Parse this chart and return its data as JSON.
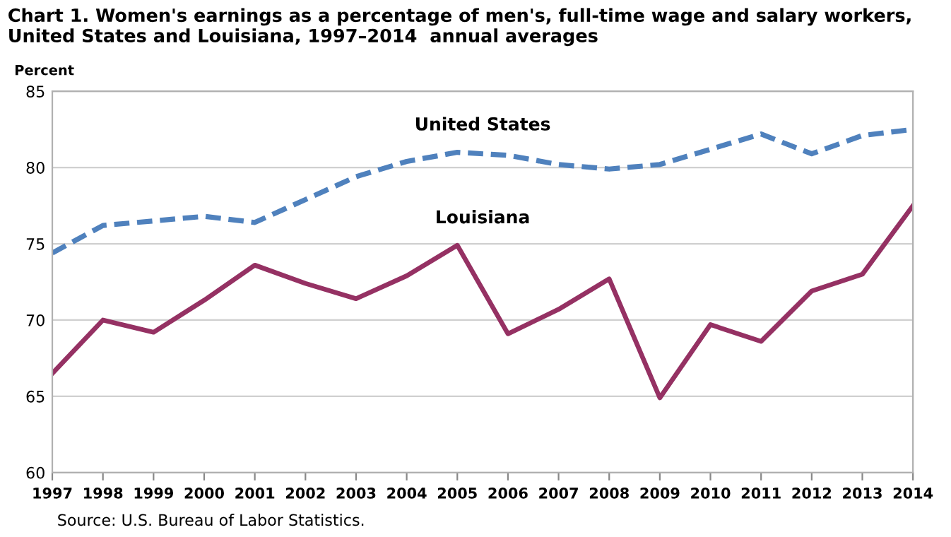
{
  "chart_data": {
    "type": "line",
    "title": "Chart 1. Women's earnings as a percentage of men's, full-time wage and salary workers, United States and Louisiana, 1997–2014  annual averages",
    "ylabel": "Percent",
    "categories": [
      "1997",
      "1998",
      "1999",
      "2000",
      "2001",
      "2002",
      "2003",
      "2004",
      "2005",
      "2006",
      "2007",
      "2008",
      "2009",
      "2010",
      "2011",
      "2012",
      "2013",
      "2014"
    ],
    "series": [
      {
        "name": "United States",
        "color": "#4f81bd",
        "line_style": "dashed",
        "values": [
          74.4,
          76.2,
          76.5,
          76.8,
          76.4,
          77.9,
          79.4,
          80.4,
          81.0,
          80.8,
          80.2,
          79.9,
          80.2,
          81.2,
          82.2,
          80.9,
          82.1,
          82.5
        ]
      },
      {
        "name": "Louisiana",
        "color": "#953163",
        "line_style": "solid",
        "values": [
          66.5,
          70.0,
          69.2,
          71.3,
          73.6,
          72.4,
          71.4,
          72.9,
          74.9,
          69.1,
          70.7,
          72.7,
          64.9,
          69.7,
          68.6,
          71.9,
          73.0,
          77.5
        ]
      }
    ],
    "ylim": [
      60,
      85
    ],
    "yticks": [
      60,
      65,
      70,
      75,
      80,
      85
    ],
    "grid": "y",
    "legend": false,
    "marker": "none",
    "annotations": [
      "Source: U.S. Bureau of Labor Statistics."
    ]
  }
}
